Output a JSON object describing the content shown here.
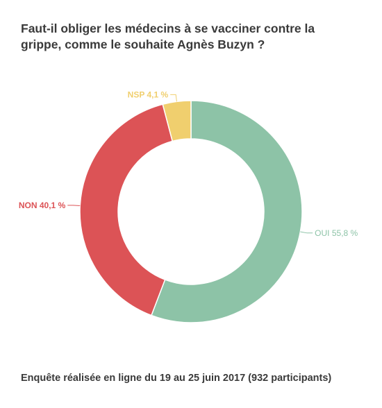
{
  "title": "Faut-il obliger les médecins à se vacciner contre la grippe, comme le souhaite Agnès Buzyn ?",
  "footnote": "Enquête réalisée en ligne du 19 au 25 juin 2017 (932 participants)",
  "chart_data": {
    "type": "pie",
    "variant": "donut",
    "title": "Faut-il obliger les médecins à se vacciner contre la grippe, comme le souhaite Agnès Buzyn ?",
    "slices": [
      {
        "name": "OUI",
        "value": 55.8,
        "label": "OUI 55,8 %",
        "color": "#8dc3a7"
      },
      {
        "name": "NON",
        "value": 40.1,
        "label": "NON 40,1 %",
        "color": "#dc5356"
      },
      {
        "name": "NSP",
        "value": 4.1,
        "label": "NSP 4,1 %",
        "color": "#f0cf6e"
      }
    ],
    "start_angle": "12 o'clock",
    "direction": "clockwise",
    "legend": "none (direct labels)"
  }
}
